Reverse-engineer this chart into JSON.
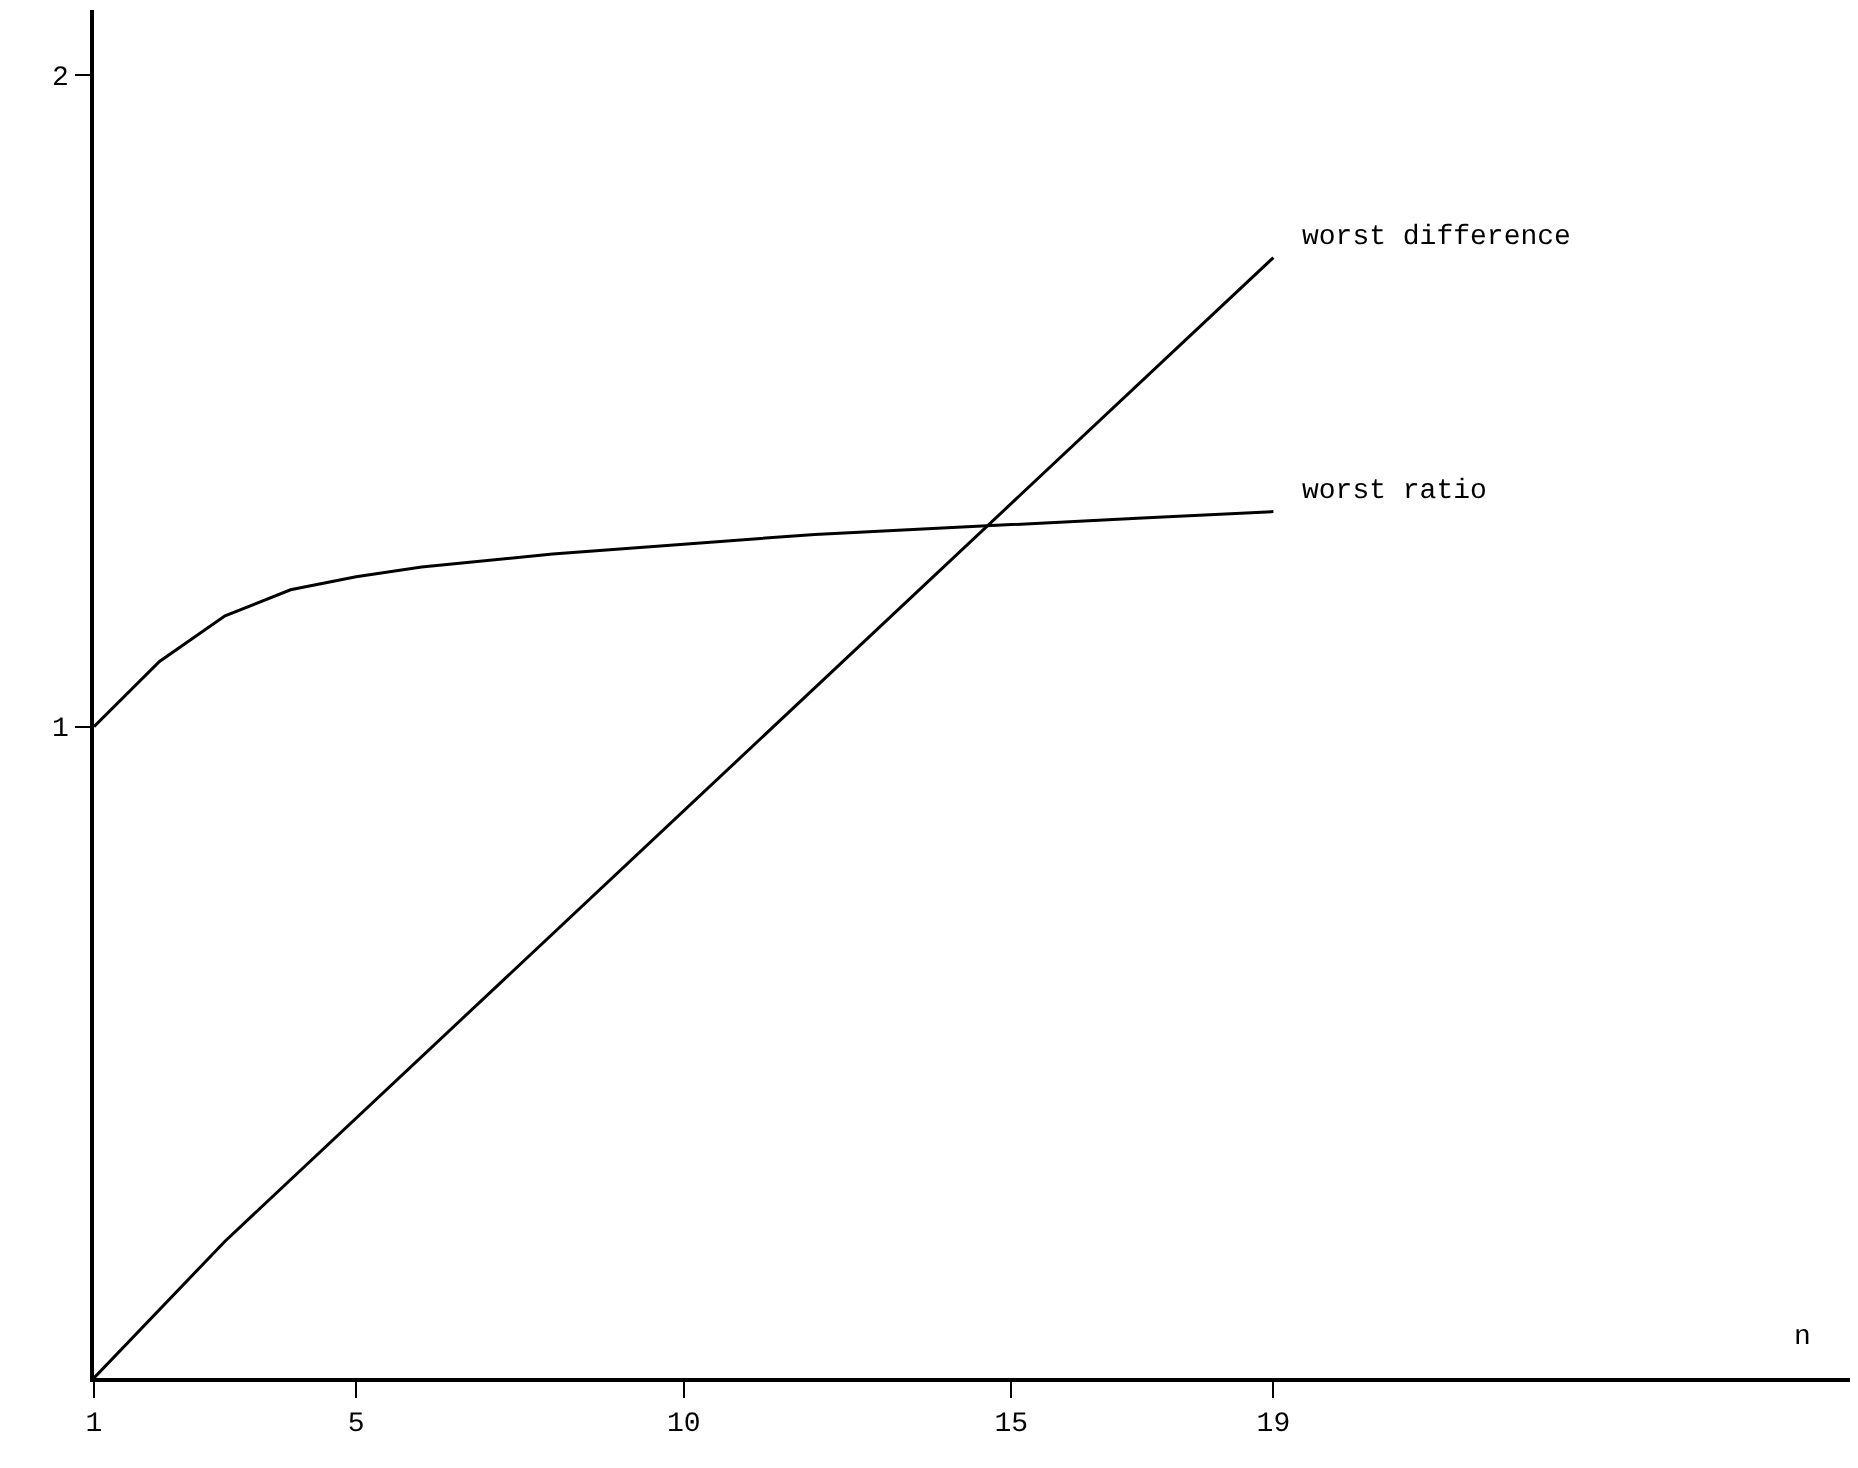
{
  "chart_data": {
    "type": "line",
    "xlabel": "n",
    "x": [
      1,
      2,
      3,
      4,
      5,
      6,
      8,
      10,
      12,
      15,
      17,
      19
    ],
    "series": [
      {
        "name": "worst difference",
        "color": "#000000",
        "x": [
          1,
          3,
          19
        ],
        "values": [
          0,
          0.21,
          1.72
        ]
      },
      {
        "name": "worst ratio",
        "color": "#000000",
        "values": [
          1,
          1.1,
          1.17,
          1.21,
          1.23,
          1.245,
          1.265,
          1.28,
          1.295,
          1.31,
          1.32,
          1.33
        ]
      }
    ],
    "xlim": [
      1,
      27.8
    ],
    "ylim": [
      0,
      2.1
    ],
    "xticks": [
      1,
      5,
      10,
      15,
      19
    ],
    "yticks": [
      1,
      2
    ],
    "marker": "none",
    "line_style": "solid"
  }
}
